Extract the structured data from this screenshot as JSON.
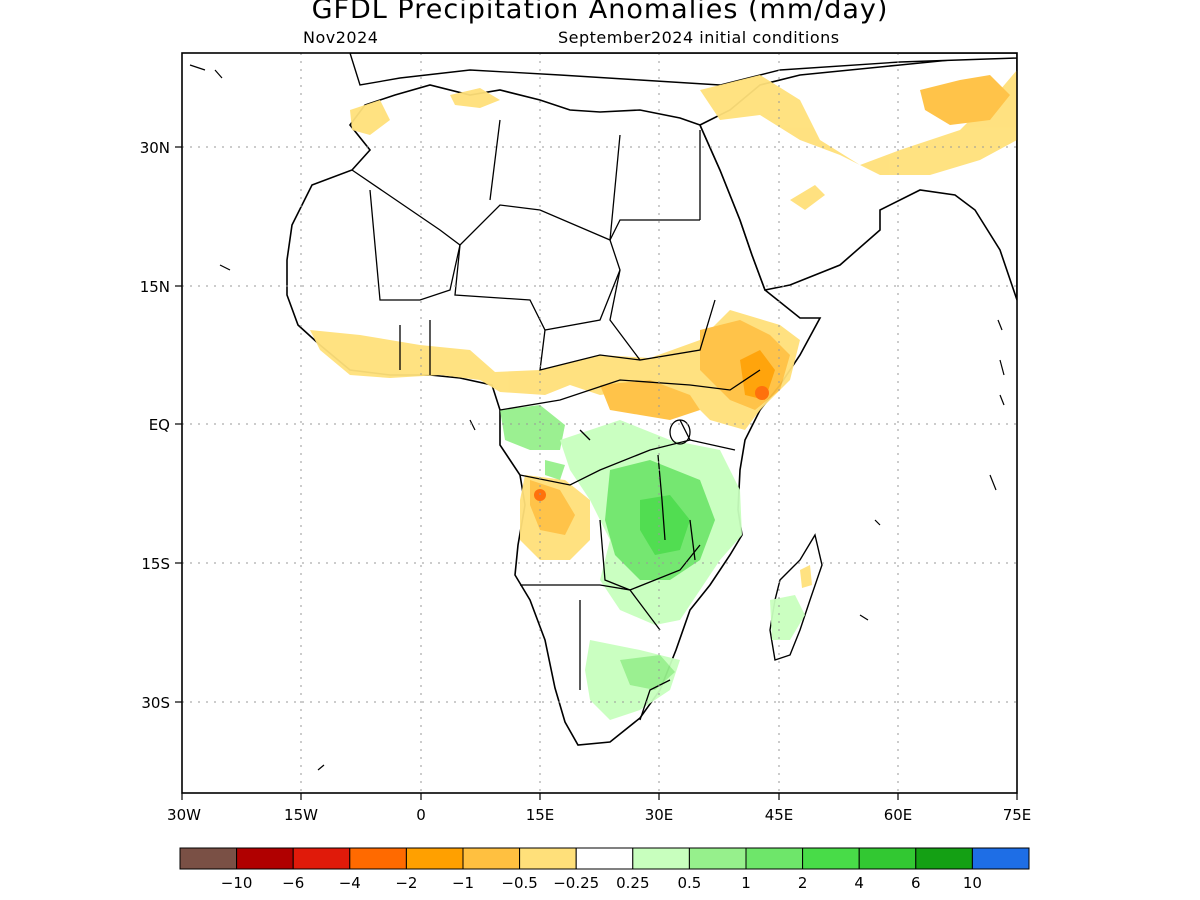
{
  "title": "GFDL Precipitation Anomalies (mm/day)",
  "subtitle_left": "Nov2024",
  "subtitle_right": "September2024 initial conditions",
  "map": {
    "lon_range": [
      -30,
      75
    ],
    "lat_range": [
      -42,
      39.5
    ],
    "x_ticks": [
      "30W",
      "15W",
      "0",
      "15E",
      "30E",
      "45E",
      "60E",
      "75E"
    ],
    "y_ticks": [
      "30N",
      "15N",
      "EQ",
      "15S",
      "30S"
    ],
    "grid": "dotted"
  },
  "colorbar": {
    "colors": [
      "#7a5045",
      "#b00000",
      "#e01a0a",
      "#ff6a00",
      "#ffa000",
      "#ffc040",
      "#ffe07a",
      "#ffffff",
      "#c8ffbe",
      "#96f08c",
      "#6ee66a",
      "#48dc48",
      "#32c832",
      "#14a014",
      "#1e6ee6"
    ],
    "labels": [
      "−10",
      "−6",
      "−4",
      "−2",
      "−1",
      "−0.5",
      "−0.25",
      "0.25",
      "0.5",
      "1",
      "2",
      "4",
      "6",
      "10"
    ]
  }
}
